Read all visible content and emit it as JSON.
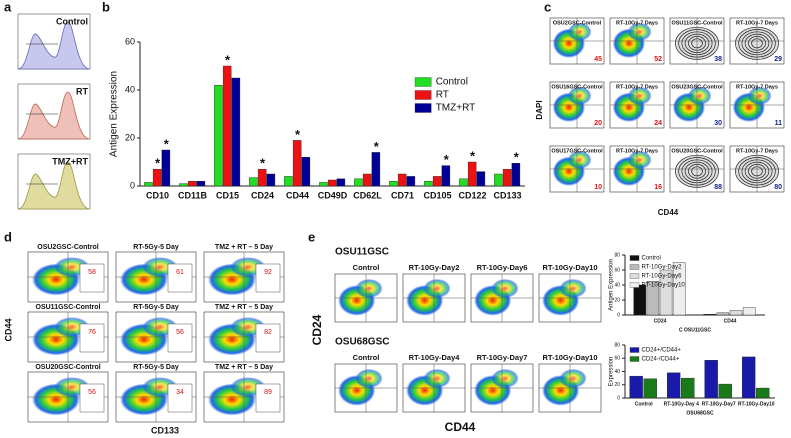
{
  "chart_data": [
    {
      "type": "bar",
      "panel": "b",
      "ylabel": "Antigen Expression",
      "categories": [
        "CD10",
        "CD11B",
        "CD15",
        "CD24",
        "CD44",
        "CD49D",
        "CD62L",
        "CD71",
        "CD105",
        "CD122",
        "CD133"
      ],
      "series": [
        {
          "name": "Control",
          "color": "#22dd22",
          "values": [
            1.5,
            1,
            42,
            3.5,
            4,
            1.5,
            3,
            2,
            2,
            3,
            5
          ]
        },
        {
          "name": "RT",
          "color": "#ee1111",
          "values": [
            7,
            2,
            50,
            7,
            19,
            2.5,
            5,
            5,
            4,
            10,
            7
          ]
        },
        {
          "name": "TMZ+RT",
          "color": "#000099",
          "values": [
            15,
            2,
            45,
            5,
            12,
            3,
            14,
            4,
            8.5,
            6,
            9.5
          ]
        }
      ],
      "ylim": [
        0,
        60
      ],
      "yticks": [
        0,
        20,
        40,
        60
      ],
      "legend": "right",
      "annotations": [
        {
          "text": "*",
          "category": 0,
          "series": 1
        },
        {
          "text": "*",
          "category": 0,
          "series": 2
        },
        {
          "text": "*",
          "category": 2,
          "series": 1
        },
        {
          "text": "*",
          "category": 3,
          "series": 1
        },
        {
          "text": "*",
          "category": 4,
          "series": 1
        },
        {
          "text": "*",
          "category": 6,
          "series": 2
        },
        {
          "text": "*",
          "category": 8,
          "series": 2
        },
        {
          "text": "*",
          "category": 9,
          "series": 1
        },
        {
          "text": "*",
          "category": 10,
          "series": 2
        }
      ]
    },
    {
      "type": "bar",
      "ylabel": "Antigen Expression",
      "xlabel": "C OSU11GSC",
      "categories": [
        "CD24",
        "CD44"
      ],
      "series": [
        {
          "name": "Control",
          "color": "#111111",
          "values": [
            40,
            1
          ]
        },
        {
          "name": "RT-10Gy-Day2",
          "color": "#bbbbbb",
          "values": [
            45,
            3
          ]
        },
        {
          "name": "RT-10Gy-Day6",
          "color": "#dddddd",
          "values": [
            60,
            6
          ]
        },
        {
          "name": "RT-10Gy-Day10",
          "color": "#eeeeee",
          "values": [
            70,
            10
          ]
        }
      ],
      "ylim": [
        0,
        80
      ],
      "yticks": [
        0,
        20,
        40,
        60,
        80
      ],
      "legend": "top-left",
      "annotations": []
    },
    {
      "type": "bar",
      "ylabel": "Expression",
      "xlabel": "OSU68GSC",
      "categories": [
        "Control",
        "RT-10Gy-Day 4",
        "RT-10Gy-Day7",
        "RT-10Gy-Day10"
      ],
      "series": [
        {
          "name": "CD24+/CD44+",
          "color": "#1a1aaa",
          "values": [
            33,
            38,
            57,
            62
          ]
        },
        {
          "name": "CD24-/CD44+",
          "color": "#1a7a1a",
          "values": [
            29,
            30,
            21,
            15
          ]
        }
      ],
      "ylim": [
        0,
        80
      ],
      "yticks": [
        0,
        20,
        40,
        60,
        80
      ],
      "legend": "top-left",
      "annotations": []
    }
  ],
  "panel_a": {
    "label": "a",
    "histograms": [
      "Control",
      "RT",
      "TMZ+RT"
    ]
  },
  "panel_c": {
    "label": "c",
    "ylabel": "DAPI",
    "xlabel": "CD44",
    "plots": [
      {
        "title": "OSU2GSC-Control",
        "value": 45
      },
      {
        "title": "RT-10Gy-7 Days",
        "value": 52
      },
      {
        "title": "OSU11GSC-Control",
        "value": 38
      },
      {
        "title": "RT-10Gy-7 Days",
        "value": 29
      },
      {
        "title": "OSU16GSC-Control",
        "value": 20
      },
      {
        "title": "RT-10Gy-7 Days",
        "value": 24
      },
      {
        "title": "OSU23GSC-Control",
        "value": 30
      },
      {
        "title": "RT-10Gy-7 Days",
        "value": 11
      },
      {
        "title": "OSU17GSC-Control",
        "value": 10
      },
      {
        "title": "RT-10Gy-7 Days",
        "value": 16
      },
      {
        "title": "OSU20GSC-Control",
        "value": 88
      },
      {
        "title": "RT-10Gy-7 Days",
        "value": 80
      }
    ]
  },
  "panel_d": {
    "label": "d",
    "ylabel": "CD44",
    "xlabel": "CD133",
    "plots": [
      {
        "title": "OSU2GSC-Control",
        "value": 58
      },
      {
        "title": "RT-5Gy-5 Day",
        "value": 61
      },
      {
        "title": "TMZ + RT – 5 Day",
        "value": 92
      },
      {
        "title": "OSU11GSC-Control",
        "value": 76
      },
      {
        "title": "RT-5Gy-5 Day",
        "value": 56
      },
      {
        "title": "TMZ + RT – 5 Day",
        "value": 82
      },
      {
        "title": "OSU20GSC-Control",
        "value": 56
      },
      {
        "title": "RT-5Gy-5 Day",
        "value": 34
      },
      {
        "title": "TMZ + RT – 5 Day",
        "value": 89
      }
    ]
  },
  "panel_e": {
    "label": "e",
    "ylabel": "CD24",
    "xlabel": "CD44",
    "rows": [
      {
        "name": "OSU11GSC",
        "titles": [
          "Control",
          "RT-10Gy-Day2",
          "RT-10Gy-Day6",
          "RT-10Gy-Day10"
        ]
      },
      {
        "name": "OSU68GSC",
        "titles": [
          "Control",
          "RT-10Gy-Day4",
          "RT-10Gy-Day7",
          "RT-10Gy-Day10"
        ]
      }
    ]
  }
}
